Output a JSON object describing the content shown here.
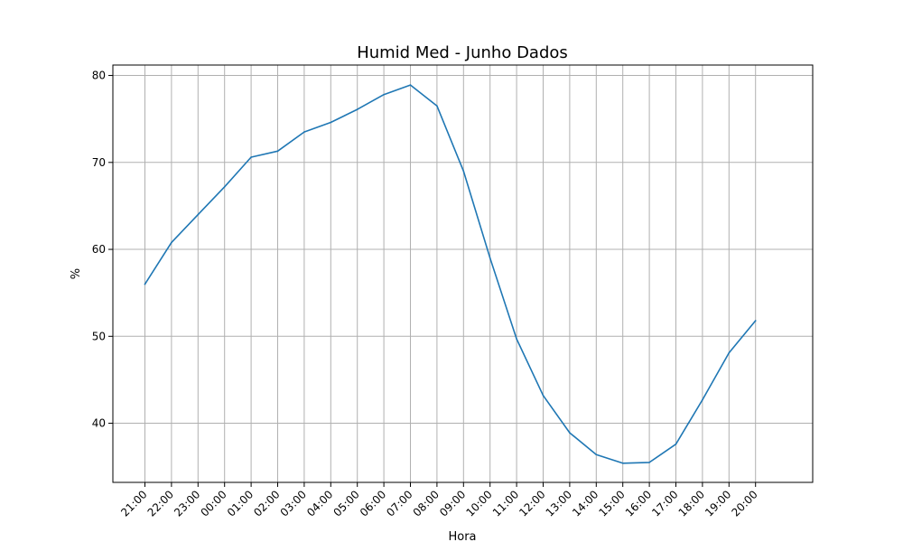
{
  "chart_data": {
    "type": "line",
    "title": "Humid Med - Junho Dados",
    "xlabel": "Hora",
    "ylabel": "%",
    "tick_labels": [
      "21:00",
      "22:00",
      "23:00",
      "00:00",
      "01:00",
      "02:00",
      "03:00",
      "04:00",
      "05:00",
      "06:00",
      "07:00",
      "08:00",
      "09:00",
      "10:00",
      "11:00",
      "12:00",
      "13:00",
      "14:00",
      "15:00",
      "16:00",
      "17:00",
      "18:00",
      "19:00",
      "20:00"
    ],
    "y_ticks": [
      40,
      50,
      60,
      70,
      80
    ],
    "ylim": [
      33.2,
      81.2
    ],
    "grid": true,
    "series": [
      {
        "color": "#1f77b4",
        "values": [
          56.0,
          60.8,
          64.0,
          67.2,
          70.6,
          71.3,
          73.5,
          74.6,
          76.1,
          77.8,
          78.9,
          76.5,
          69.0,
          59.0,
          49.7,
          43.2,
          38.9,
          36.4,
          35.4,
          35.5,
          37.6,
          42.7,
          48.1,
          51.8
        ]
      }
    ]
  }
}
